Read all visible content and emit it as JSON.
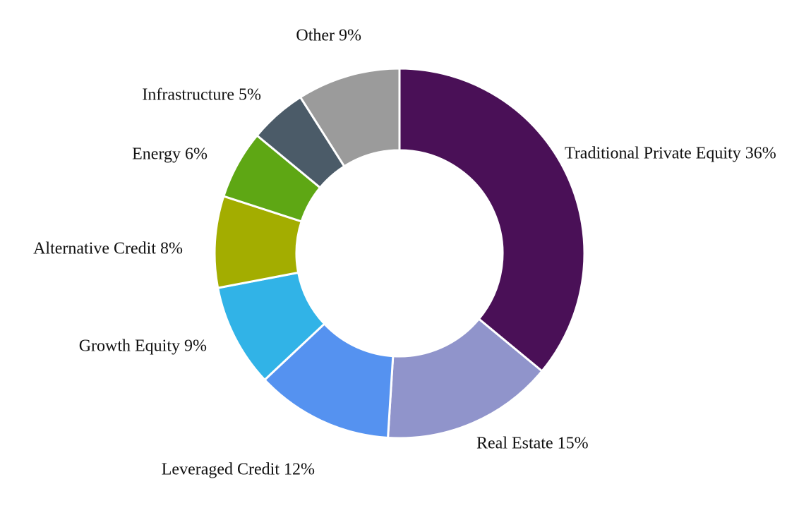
{
  "chart_data": {
    "type": "pie",
    "variant": "donut",
    "title": "",
    "legend": "none",
    "start_angle_deg": 0,
    "direction": "clockwise",
    "slices": [
      {
        "label": "Traditional Private Equity",
        "value": 36,
        "display": "Traditional Private Equity 36%",
        "color": "#4a1057"
      },
      {
        "label": "Real Estate",
        "value": 15,
        "display": "Real Estate 15%",
        "color": "#9094cb"
      },
      {
        "label": "Leveraged Credit",
        "value": 12,
        "display": "Leveraged Credit 12%",
        "color": "#5592f0"
      },
      {
        "label": "Growth Equity",
        "value": 9,
        "display": "Growth Equity 9%",
        "color": "#31b3e7"
      },
      {
        "label": "Alternative Credit",
        "value": 8,
        "display": "Alternative Credit 8%",
        "color": "#a3ad00"
      },
      {
        "label": "Energy",
        "value": 6,
        "display": "Energy 6%",
        "color": "#5ea714"
      },
      {
        "label": "Infrastructure",
        "value": 5,
        "display": "Infrastructure 5%",
        "color": "#4b5b68"
      },
      {
        "label": "Other",
        "value": 9,
        "display": "Other 9%",
        "color": "#9b9b9b"
      }
    ]
  }
}
